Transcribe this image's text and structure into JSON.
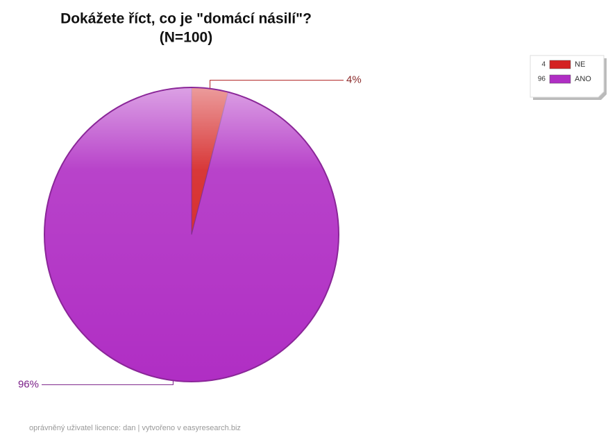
{
  "chart_data": {
    "type": "pie",
    "title": [
      "Dokážete říct, co je \"domácí násilí\"?",
      "(N=100)"
    ],
    "categories": [
      "NE",
      "ANO"
    ],
    "values": [
      4,
      96
    ],
    "value_labels": [
      "4%",
      "96%"
    ],
    "colors": [
      "#d42222",
      "#b02ec4"
    ],
    "legend": "top-right",
    "footer": "oprávněný uživatel licence: dan | vytvořeno v easyresearch.biz"
  }
}
